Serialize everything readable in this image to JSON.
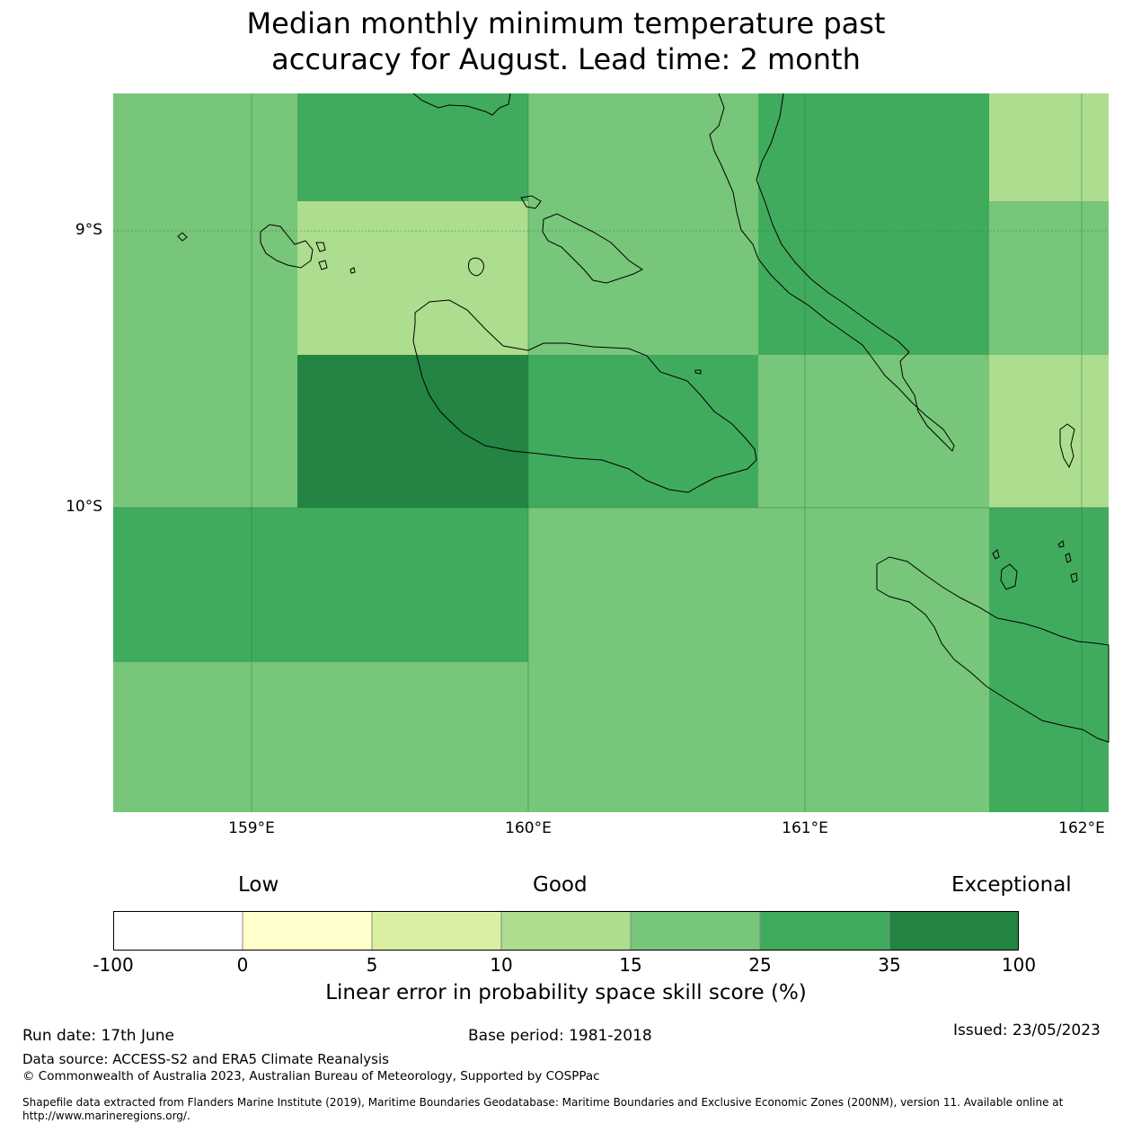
{
  "title_line1": "Median monthly minimum temperature past",
  "title_line2": "accuracy for August. Lead time: 2 month",
  "map": {
    "lat_labels": [
      "9°S",
      "10°S"
    ],
    "lon_labels": [
      "159°E",
      "160°E",
      "161°E",
      "162°E"
    ],
    "grid_cells_skill_class": [
      [
        "15-25",
        "25-35",
        "15-25",
        "25-35",
        "10-15"
      ],
      [
        "15-25",
        "10-15",
        "15-25",
        "25-35",
        "15-25"
      ],
      [
        "15-25",
        "35-100",
        "25-35",
        "15-25",
        "10-15"
      ],
      [
        "25-35",
        "25-35",
        "15-25",
        "15-25",
        "25-35"
      ],
      [
        "15-25",
        "15-25",
        "15-25",
        "15-25",
        "25-35"
      ]
    ],
    "colors": {
      "n100_0": "#ffffff",
      "0_5": "#ffffcc",
      "5_10": "#d9f0a3",
      "10_15": "#addd8e",
      "15_25": "#78c679",
      "25_35": "#41ab5d",
      "35_100": "#238443"
    }
  },
  "legend": {
    "low": "Low",
    "good": "Good",
    "exceptional": "Exceptional",
    "ticks": [
      "-100",
      "0",
      "5",
      "10",
      "15",
      "25",
      "35",
      "100"
    ],
    "label": "Linear error in probability space skill score (%)"
  },
  "footer": {
    "run_date": "Run date: 17th June",
    "base_period": "Base period: 1981-2018",
    "issued": "Issued: 23/05/2023",
    "data_source": "Data source: ACCESS-S2 and ERA5 Climate Reanalysis",
    "copyright": "© Commonwealth of Australia 2023, Australian Bureau of Meteorology, Supported by COSPPac",
    "shapefile_line1": "Shapefile data extracted from Flanders Marine Institute (2019), Maritime Boundaries Geodatabase: Maritime Boundaries and Exclusive Economic Zones (200NM), version 11. Available online at",
    "shapefile_line2": "http://www.marineregions.org/."
  }
}
